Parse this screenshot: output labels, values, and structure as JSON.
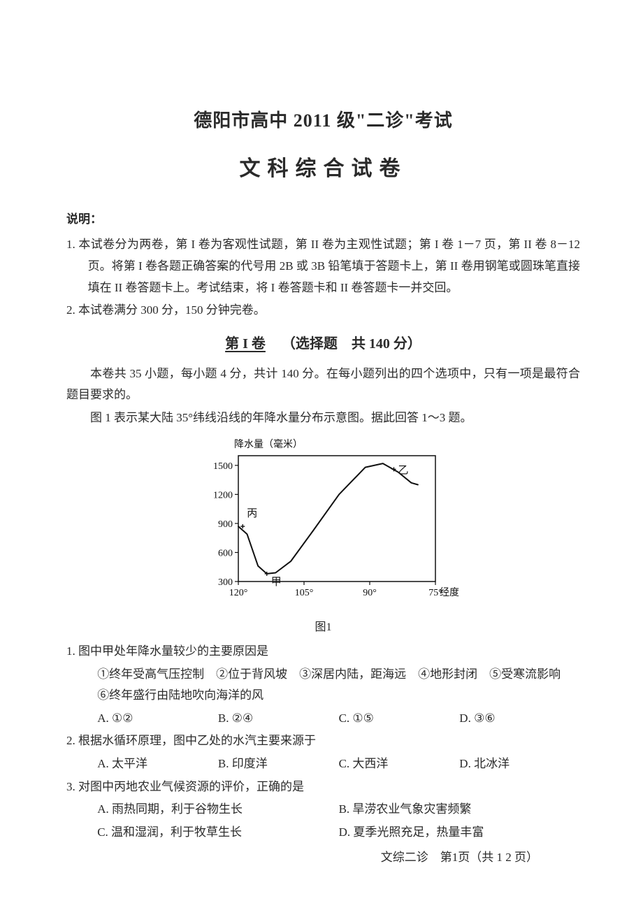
{
  "header": {
    "line1": "德阳市高中 2011 级\"二诊\"考试",
    "line2": "文科综合试卷"
  },
  "shuoming_label": "说明：",
  "instructions": [
    "1. 本试卷分为两卷，第 I 卷为客观性试题，第 II 卷为主观性试题；第 I 卷 1－7 页，第 II 卷 8－12 页。将第 I 卷各题正确答案的代号用 2B 或 3B 铅笔填于答题卡上，第 II 卷用钢笔或圆珠笔直接填在 II 卷答题卡上。考试结束，将 I 卷答题卡和 II 卷答题卡一并交回。",
    "2. 本试卷满分 300 分，150 分钟完卷。"
  ],
  "section": {
    "num": "第 I 卷",
    "sub": "（选择题　共 140 分）"
  },
  "section_intro": "本卷共 35 小题，每小题 4 分，共计 140 分。在每小题列出的四个选项中，只有一项是最符合题目要求的。",
  "stem_intro": "图 1 表示某大陆 35°纬线沿线的年降水量分布示意图。据此回答 1～3 题。",
  "chart": {
    "type": "line",
    "y_label": "降水量（毫米）",
    "x_unit": "°经度",
    "x_ticks": [
      120,
      105,
      90,
      75
    ],
    "y_ticks": [
      300,
      600,
      900,
      1200,
      1500
    ],
    "xlim": [
      120,
      75
    ],
    "ylim": [
      300,
      1600
    ],
    "curve": [
      {
        "x": 120,
        "y": 870
      },
      {
        "x": 118,
        "y": 790
      },
      {
        "x": 115.5,
        "y": 460
      },
      {
        "x": 113.5,
        "y": 380
      },
      {
        "x": 111.5,
        "y": 390
      },
      {
        "x": 108,
        "y": 510
      },
      {
        "x": 103,
        "y": 820
      },
      {
        "x": 97,
        "y": 1200
      },
      {
        "x": 91,
        "y": 1480
      },
      {
        "x": 87,
        "y": 1520
      },
      {
        "x": 83.5,
        "y": 1430
      },
      {
        "x": 80.5,
        "y": 1320
      },
      {
        "x": 79,
        "y": 1300
      }
    ],
    "markers": {
      "jia": {
        "label": "甲",
        "x": 113.5,
        "y": 380,
        "label_dy": 16
      },
      "yi": {
        "label": "乙",
        "x": 84.5,
        "y": 1460,
        "label_dy": 6
      },
      "bing": {
        "label": "丙",
        "x": 119,
        "y": 870,
        "label_dy": -14
      }
    },
    "axis_color": "#111111",
    "line_color": "#111111",
    "line_width": 2,
    "tick_fontsize": 14,
    "label_fontsize": 14,
    "background_color": "#ffffff",
    "caption": "图1"
  },
  "questions": [
    {
      "num": "1.",
      "text": "图中甲处年降水量较少的主要原因是",
      "statements": "①终年受高气压控制　②位于背风坡　③深居内陆，距海远　④地形封闭　⑤受寒流影响　⑥终年盛行由陆地吹向海洋的风",
      "opts": [
        "A. ①②",
        "B. ②④",
        "C. ①⑤",
        "D. ③⑥"
      ]
    },
    {
      "num": "2.",
      "text": "根据水循环原理，图中乙处的水汽主要来源于",
      "opts": [
        "A. 太平洋",
        "B. 印度洋",
        "C. 大西洋",
        "D. 北冰洋"
      ]
    },
    {
      "num": "3.",
      "text": "对图中丙地农业气候资源的评价，正确的是",
      "opts2": [
        [
          "A. 雨热同期，利于谷物生长",
          "B. 旱涝农业气象灾害频繁"
        ],
        [
          "C. 温和湿润，利于牧草生长",
          "D. 夏季光照充足，热量丰富"
        ]
      ]
    }
  ],
  "footer": "文综二诊　第1页（共 1 2 页）"
}
